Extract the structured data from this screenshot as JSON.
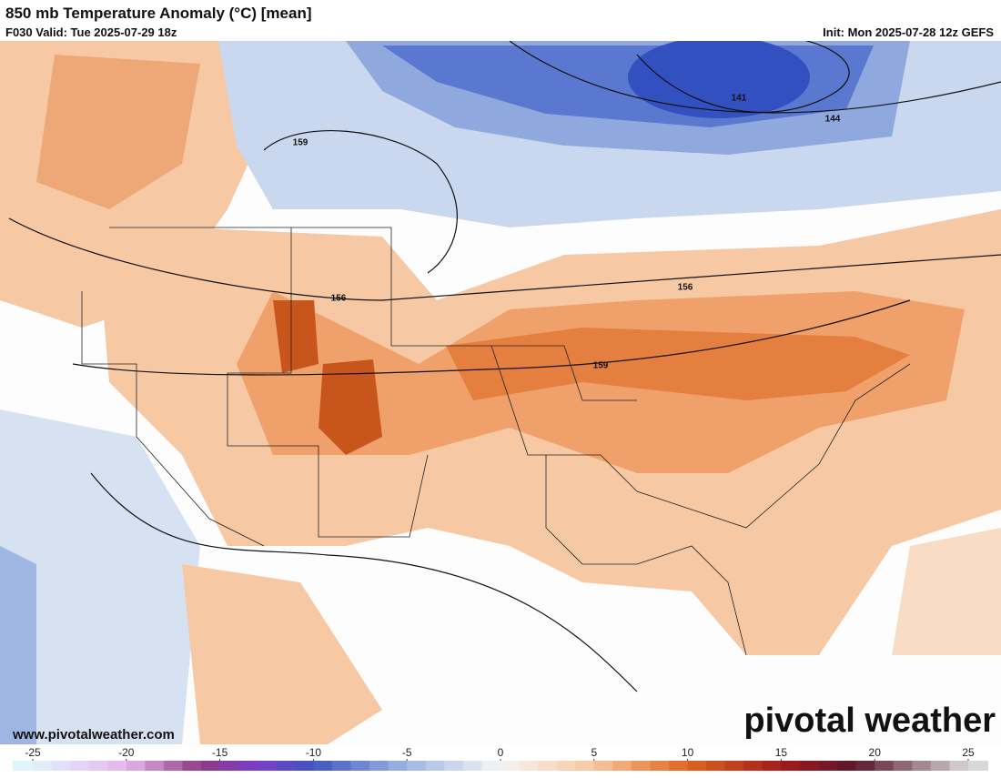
{
  "header": {
    "title": "850 mb Temperature Anomaly (°C) [mean]",
    "valid": "F030 Valid: Tue 2025-07-29 18z",
    "init": "Init: Mon 2025-07-28 12z GEFS"
  },
  "contour_labels": [
    "141",
    "144",
    "159",
    "156",
    "156",
    "159"
  ],
  "footer": {
    "website": "www.pivotalweather.com",
    "brand": "pivotal weather"
  },
  "colorbar": {
    "lim": [
      -25,
      25
    ],
    "ticks": [
      -25,
      -20,
      -15,
      -10,
      -5,
      0,
      5,
      10,
      15,
      20,
      25
    ]
  }
}
